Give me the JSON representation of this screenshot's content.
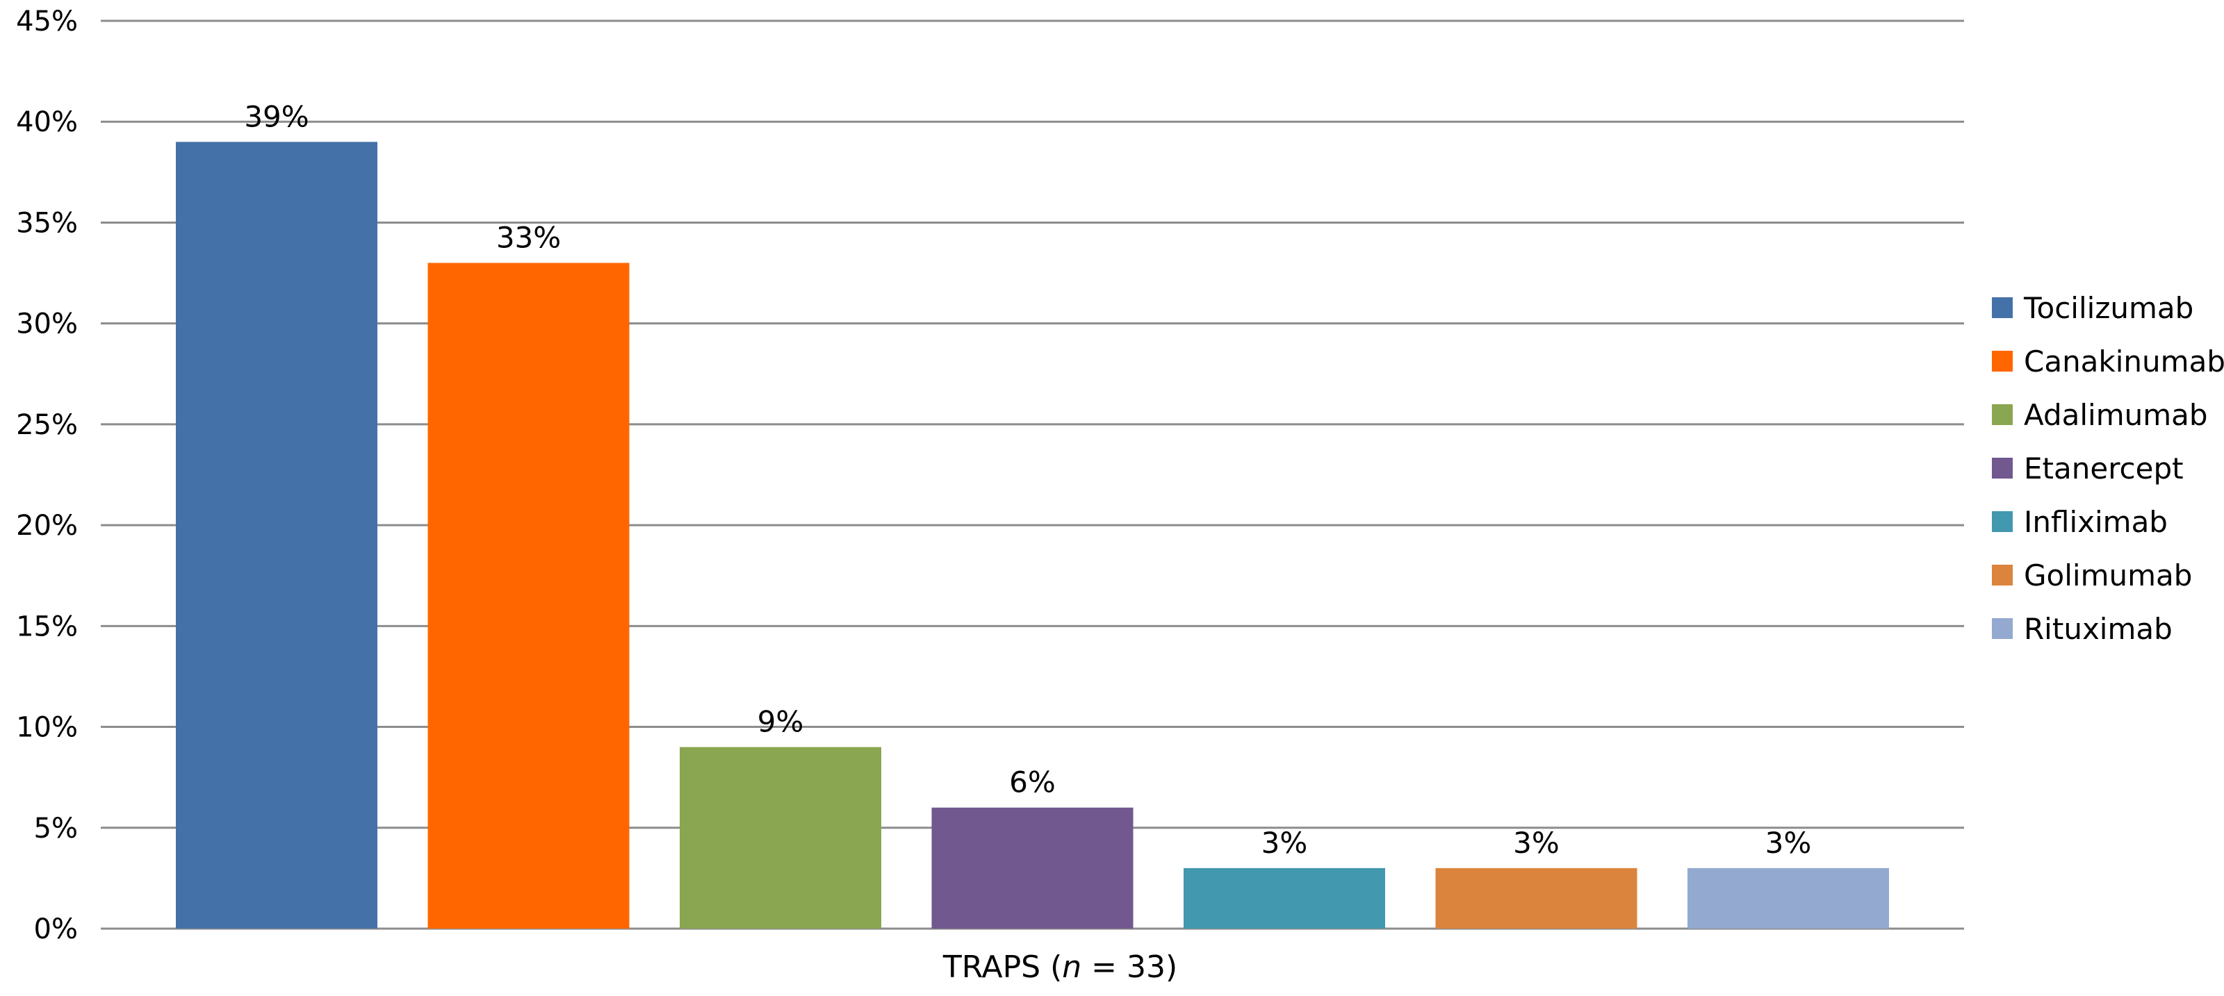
{
  "chart_data": {
    "type": "bar",
    "title": "",
    "xlabel": "",
    "ylabel": "",
    "category": {
      "prefix": "TRAPS (",
      "n_symbol": "n",
      "suffix": " = 33)"
    },
    "ylim": [
      0,
      45
    ],
    "yticks": [
      0,
      5,
      10,
      15,
      20,
      25,
      30,
      35,
      40,
      45
    ],
    "y_tick_suffix": "%",
    "grid": true,
    "legend_position": "right",
    "series": [
      {
        "name": "Tocilizumab",
        "value": 39,
        "label": "39%",
        "color": "#4472A8"
      },
      {
        "name": "Canakinumab",
        "value": 33,
        "label": "33%",
        "color": "#FF6600"
      },
      {
        "name": "Adalimumab",
        "value": 9,
        "label": "9%",
        "color": "#8BA650"
      },
      {
        "name": "Etanercept",
        "value": 6,
        "label": "6%",
        "color": "#71588F"
      },
      {
        "name": "Infliximab",
        "value": 3,
        "label": "3%",
        "color": "#4198AF"
      },
      {
        "name": "Golimumab",
        "value": 3,
        "label": "3%",
        "color": "#DB843D"
      },
      {
        "name": "Rituximab",
        "value": 3,
        "label": "3%",
        "color": "#93A9CF"
      }
    ]
  }
}
